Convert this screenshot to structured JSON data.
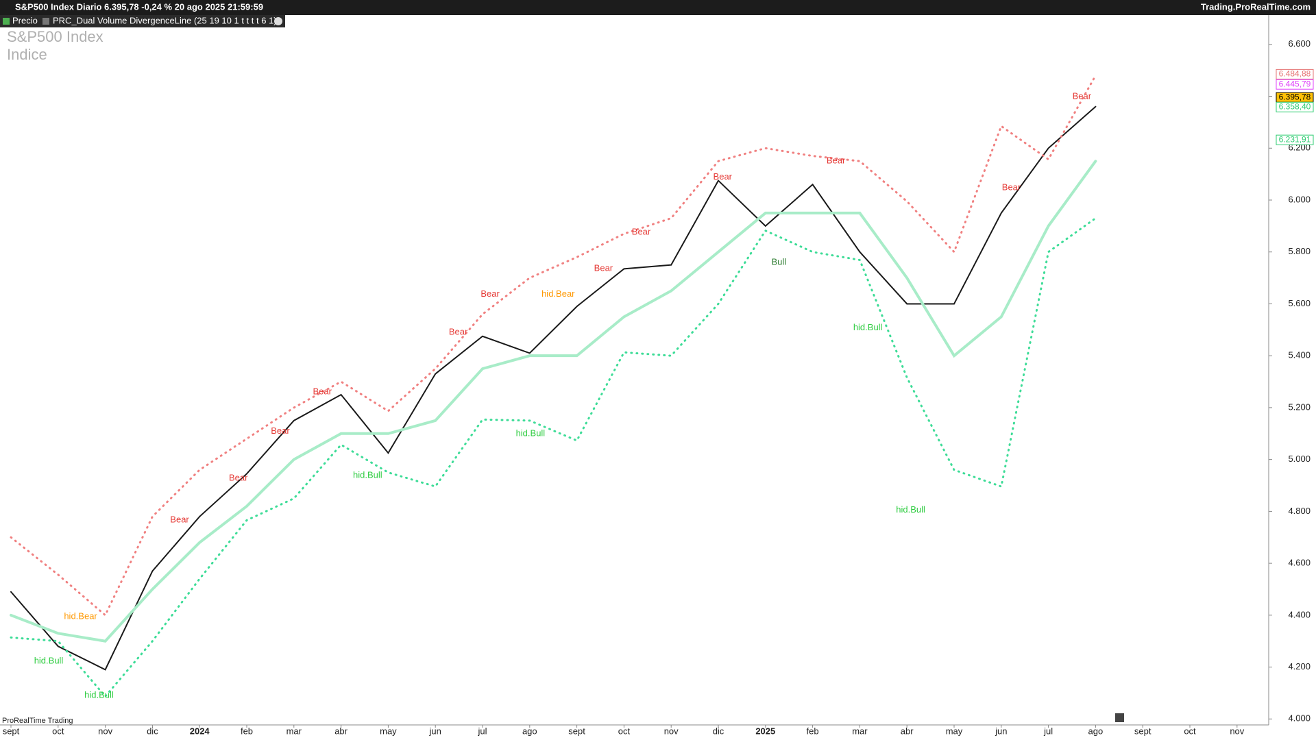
{
  "header": {
    "title": "S&P500 Index Diario 6.395,78 -0,24 % 20 ago 2025 21:59:59",
    "site": "Trading.ProRealTime.com",
    "price_tag": "Precio",
    "indicator_tag": "PRC_Dual Volume DivergenceLine (25 19 10 1 t t t t 6 1)"
  },
  "chart_data": {
    "type": "line",
    "watermark": [
      "S&P500 Index",
      "Indice"
    ],
    "footer": "ProRealTime Trading",
    "categories": [
      "sept",
      "oct",
      "nov",
      "dic",
      "2024",
      "feb",
      "mar",
      "abr",
      "may",
      "jun",
      "jul",
      "ago",
      "sept",
      "oct",
      "nov",
      "dic",
      "2025",
      "feb",
      "mar",
      "abr",
      "may",
      "jun",
      "jul",
      "ago",
      "sept",
      "oct",
      "nov"
    ],
    "series": [
      {
        "name": "Precio",
        "color": "#1a1a1a",
        "values": [
          4490,
          4280,
          4190,
          4570,
          4780,
          4945,
          5150,
          5250,
          5025,
          5330,
          5475,
          5410,
          5590,
          5735,
          5750,
          6075,
          5900,
          6060,
          5800,
          5600,
          5600,
          5950,
          6200,
          6360,
          null,
          null,
          null
        ]
      },
      {
        "color": "#f08080",
        "dash": true,
        "values": [
          4700,
          4556,
          4400,
          4780,
          4960,
          5080,
          5200,
          5300,
          5187,
          5350,
          5560,
          5700,
          5780,
          5870,
          5930,
          6150,
          6200,
          6170,
          6150,
          5995,
          5800,
          6285,
          6157,
          6480,
          null,
          null,
          null
        ]
      },
      {
        "color": "#a8ecc8",
        "dash": false,
        "values": [
          4400,
          4330,
          4300,
          4500,
          4680,
          4820,
          5000,
          5100,
          5100,
          5150,
          5350,
          5400,
          5400,
          5550,
          5650,
          5800,
          5950,
          5950,
          5950,
          5700,
          5400,
          5550,
          5900,
          6150,
          null,
          null,
          null
        ]
      },
      {
        "color": "#3ddc97",
        "dash": true,
        "values": [
          4314,
          4300,
          4087,
          4300,
          4540,
          4766,
          4850,
          5057,
          4950,
          4896,
          5154,
          5150,
          5073,
          5413,
          5400,
          5600,
          5882,
          5800,
          5769,
          5316,
          4960,
          4896,
          5800,
          5930,
          null,
          null,
          null
        ]
      }
    ],
    "ylim": [
      3977,
      6713
    ],
    "yticks": [
      {
        "value": 4000,
        "label": "4.000"
      },
      {
        "value": 4200,
        "label": "4.200"
      },
      {
        "value": 4400,
        "label": "4.400"
      },
      {
        "value": 4600,
        "label": "4.600"
      },
      {
        "value": 4800,
        "label": "4.800"
      },
      {
        "value": 5000,
        "label": "5.000"
      },
      {
        "value": 5200,
        "label": "5.200"
      },
      {
        "value": 5400,
        "label": "5.400"
      },
      {
        "value": 5600,
        "label": "5.600"
      },
      {
        "value": 5800,
        "label": "5.800"
      },
      {
        "value": 6000,
        "label": "6.000"
      },
      {
        "value": 6200,
        "label": "6.200"
      },
      {
        "value": 6400,
        "label": "6.400"
      },
      {
        "value": 6600,
        "label": "6.600"
      }
    ],
    "price_labels": [
      {
        "value": 6484.88,
        "label": "6.484,88",
        "color": "#e57373",
        "bg": "#ffffff"
      },
      {
        "value": 6445.79,
        "label": "6.445,79",
        "color": "#e040fb",
        "bg": "#ffffff"
      },
      {
        "value": 6395.78,
        "label": "6.395,78",
        "color": "#000000",
        "bg": "#ffc107"
      },
      {
        "value": 6358.4,
        "label": "6.358,40",
        "color": "#2ecc71",
        "bg": "#ffffff"
      },
      {
        "value": 6231.91,
        "label": "6.231,91",
        "color": "#2ecc71",
        "bg": "#ffffff"
      }
    ],
    "annotations": [
      {
        "text": "hid.Bear",
        "color": "#ff9800"
      },
      {
        "text": "hid.Bull",
        "color": "#2ecc40"
      },
      {
        "text": "hid.Bull",
        "color": "#2ecc40"
      },
      {
        "text": "Bear",
        "color": "#e53935"
      },
      {
        "text": "Bear",
        "color": "#e53935"
      },
      {
        "text": "Bear",
        "color": "#e53935"
      },
      {
        "text": "Bear",
        "color": "#e53935"
      },
      {
        "text": "hid.Bull",
        "color": "#2ecc40"
      },
      {
        "text": "Bear",
        "color": "#e53935"
      },
      {
        "text": "Bear",
        "color": "#e53935"
      },
      {
        "text": "hid.Bull",
        "color": "#2ecc40"
      },
      {
        "text": "hid.Bear",
        "color": "#ff9800"
      },
      {
        "text": "Bear",
        "color": "#e53935"
      },
      {
        "text": "Bear",
        "color": "#e53935"
      },
      {
        "text": "Bear",
        "color": "#e53935"
      },
      {
        "text": "Bull",
        "color": "#2e7d32"
      },
      {
        "text": "Bear",
        "color": "#e53935"
      },
      {
        "text": "hid.Bull",
        "color": "#2ecc40"
      },
      {
        "text": "hid.Bull",
        "color": "#2ecc40"
      },
      {
        "text": "Bear",
        "color": "#e53935"
      },
      {
        "text": "Bear",
        "color": "#e53935"
      }
    ]
  }
}
